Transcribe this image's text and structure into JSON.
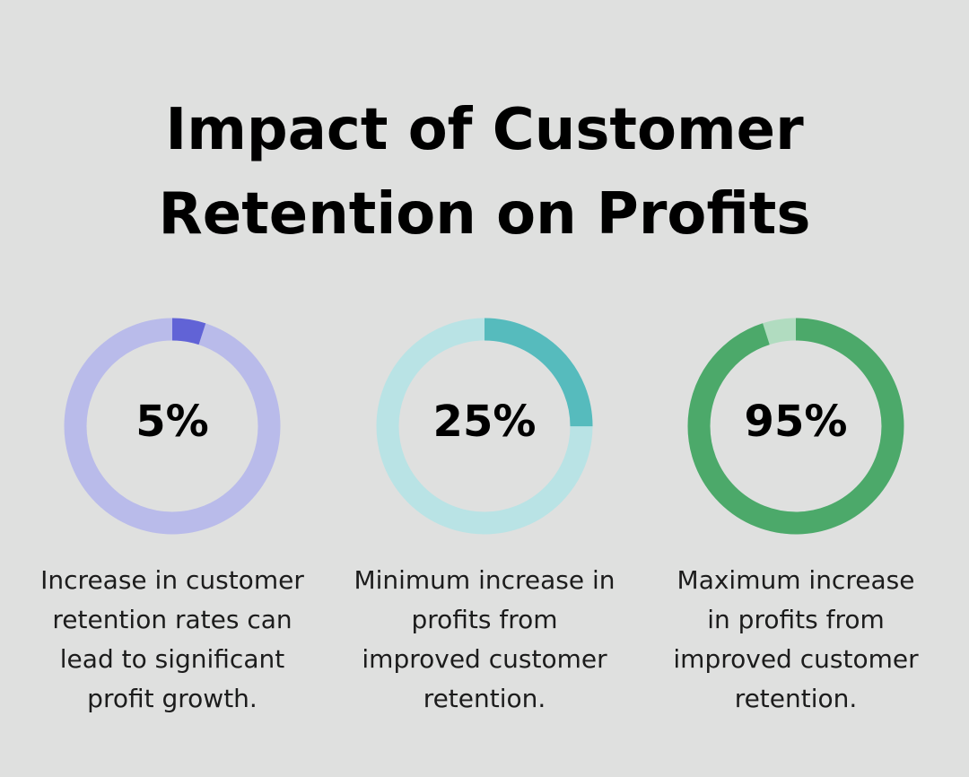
{
  "title_lines": [
    "Impact of Customer",
    "Retention on Profits"
  ],
  "chart_data": {
    "type": "pie",
    "title": "Impact of Customer Retention on Profits",
    "items": [
      {
        "value": 5,
        "label": "5%",
        "description_lines": [
          "Increase in customer",
          "retention rates can",
          "lead to significant",
          "profit growth."
        ],
        "color": "#6163d6",
        "track_color": "#b9bbea"
      },
      {
        "value": 25,
        "label": "25%",
        "description_lines": [
          "Minimum increase in",
          "profits from",
          "improved customer",
          "retention."
        ],
        "color": "#56bbbd",
        "track_color": "#b9e3e5"
      },
      {
        "value": 95,
        "label": "95%",
        "description_lines": [
          "Maximum increase",
          "in profits from",
          "improved customer",
          "retention."
        ],
        "color": "#4ca96a",
        "track_color": "#b1dcc0"
      }
    ]
  }
}
